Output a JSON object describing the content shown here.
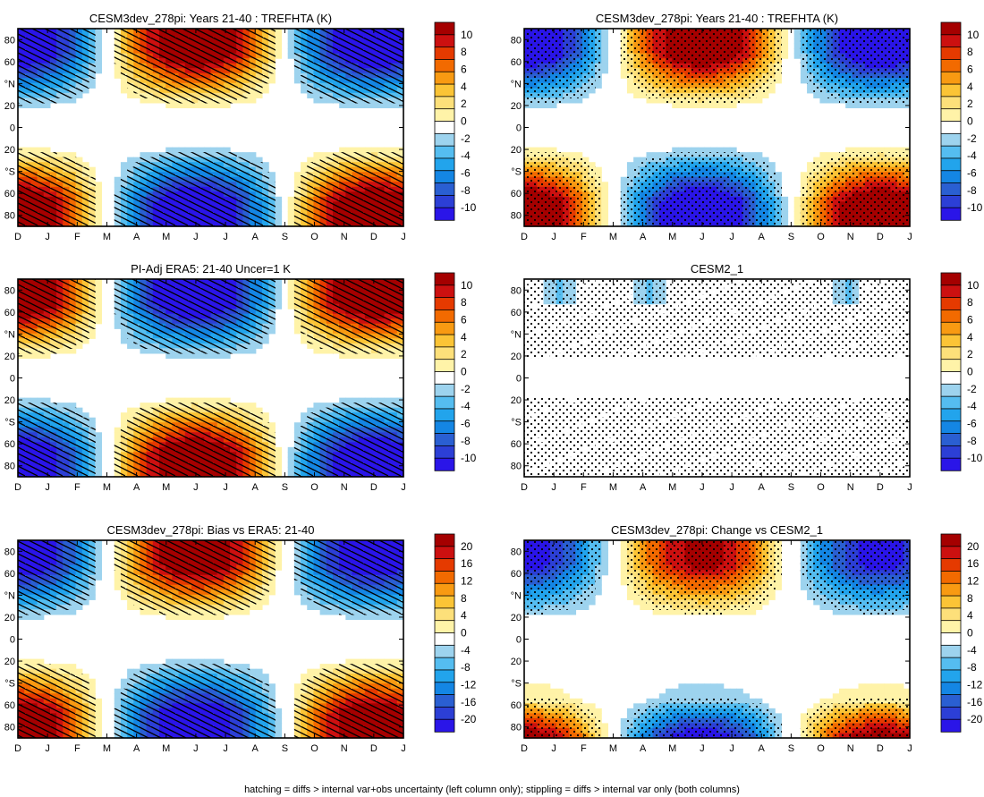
{
  "footnote": "hatching = diffs > internal var+obs uncertainty (left column only); stippling = diffs > internal var only (both columns)",
  "months": [
    "D",
    "J",
    "F",
    "M",
    "A",
    "M",
    "J",
    "J",
    "A",
    "S",
    "O",
    "N",
    "D",
    "J"
  ],
  "lat_labels": [
    "80",
    "60",
    "°N",
    "20",
    "0",
    "20",
    "°S",
    "60",
    "80"
  ],
  "colorbars": {
    "tref": [
      "10",
      "8",
      "6",
      "4",
      "2",
      "0",
      "-2",
      "-4",
      "-6",
      "-8",
      "-10"
    ],
    "bias": [
      "20",
      "16",
      "12",
      "8",
      "4",
      "0",
      "-4",
      "-8",
      "-12",
      "-16",
      "-20"
    ]
  },
  "palette": [
    "#a50000",
    "#cc1010",
    "#e53a00",
    "#f26a00",
    "#f89a12",
    "#fbc436",
    "#fde07a",
    "#fff3a8",
    "#ffffff",
    "#9dd3ee",
    "#55bdf0",
    "#22a4ec",
    "#1486e4",
    "#2a5fd2",
    "#2c3fd6",
    "#2a15e8"
  ],
  "chart_data": [
    {
      "type": "heatmap",
      "title": "CESM3dev_278pi: Years 21-40 : TREFHTA (K)",
      "x_categories": [
        "D",
        "J",
        "F",
        "M",
        "A",
        "M",
        "J",
        "J",
        "A",
        "S",
        "O",
        "N",
        "D",
        "J"
      ],
      "y_range": [
        -90,
        90
      ],
      "y_tick_labels": [
        "80",
        "60",
        "°N",
        "20",
        "0",
        "20",
        "°S",
        "60",
        "80"
      ],
      "colorbar_ticks": [
        10,
        8,
        6,
        4,
        2,
        0,
        -2,
        -4,
        -6,
        -8,
        -10
      ],
      "pattern": "NH cold DJF (~-10 K), warm JJA (~+10 K); SH warm DJF, cold JJA; near-zero in tropics",
      "overlay": "hatching"
    },
    {
      "type": "heatmap",
      "title": "CESM3dev_278pi: Years 21-40 : TREFHTA (K)",
      "x_categories": [
        "D",
        "J",
        "F",
        "M",
        "A",
        "M",
        "J",
        "J",
        "A",
        "S",
        "O",
        "N",
        "D",
        "J"
      ],
      "y_range": [
        -90,
        90
      ],
      "y_tick_labels": [
        "80",
        "60",
        "°N",
        "20",
        "0",
        "20",
        "°S",
        "60",
        "80"
      ],
      "colorbar_ticks": [
        10,
        8,
        6,
        4,
        2,
        0,
        -2,
        -4,
        -6,
        -8,
        -10
      ],
      "pattern": "Same field as left panel",
      "overlay": "stippling"
    },
    {
      "type": "heatmap",
      "title": "PI-Adj ERA5: 21-40 Uncer=1 K",
      "x_categories": [
        "D",
        "J",
        "F",
        "M",
        "A",
        "M",
        "J",
        "J",
        "A",
        "S",
        "O",
        "N",
        "D",
        "J"
      ],
      "y_range": [
        -90,
        90
      ],
      "y_tick_labels": [
        "80",
        "60",
        "°N",
        "20",
        "0",
        "20",
        "°S",
        "60",
        "80"
      ],
      "colorbar_ticks": [
        10,
        8,
        6,
        4,
        2,
        0,
        -2,
        -4,
        -6,
        -8,
        -10
      ],
      "pattern": "NH warm DJF, cold JJA; SH cold DJF, warm JJA (~+10 K)",
      "overlay": "hatching"
    },
    {
      "type": "heatmap",
      "title": "CESM2_1",
      "x_categories": [
        "D",
        "J",
        "F",
        "M",
        "A",
        "M",
        "J",
        "J",
        "A",
        "S",
        "O",
        "N",
        "D",
        "J"
      ],
      "y_range": [
        -90,
        90
      ],
      "y_tick_labels": [
        "80",
        "60",
        "°N",
        "20",
        "0",
        "20",
        "°S",
        "60",
        "80"
      ],
      "colorbar_ticks": [
        10,
        8,
        6,
        4,
        2,
        0,
        -2,
        -4,
        -6,
        -8,
        -10
      ],
      "pattern": "Mostly near zero; small -2 K patches at 80-90°N in Jan, Apr, Nov",
      "overlay": "stippling"
    },
    {
      "type": "heatmap",
      "title": "CESM3dev_278pi: Bias vs ERA5: 21-40",
      "x_categories": [
        "D",
        "J",
        "F",
        "M",
        "A",
        "M",
        "J",
        "J",
        "A",
        "S",
        "O",
        "N",
        "D",
        "J"
      ],
      "y_range": [
        -90,
        90
      ],
      "y_tick_labels": [
        "80",
        "60",
        "°N",
        "20",
        "0",
        "20",
        "°S",
        "60",
        "80"
      ],
      "colorbar_ticks": [
        20,
        16,
        12,
        8,
        4,
        0,
        -4,
        -8,
        -12,
        -16,
        -20
      ],
      "pattern": "NH cold DJF (~-20 K), warm JJA (~+12 K); SH warm DJF (~+20 K), cold JJA (~-20 K)",
      "overlay": "hatching"
    },
    {
      "type": "heatmap",
      "title": "CESM3dev_278pi: Change vs CESM2_1",
      "x_categories": [
        "D",
        "J",
        "F",
        "M",
        "A",
        "M",
        "J",
        "J",
        "A",
        "S",
        "O",
        "N",
        "D",
        "J"
      ],
      "y_range": [
        -90,
        90
      ],
      "y_tick_labels": [
        "80",
        "60",
        "°N",
        "20",
        "0",
        "20",
        "°S",
        "60",
        "80"
      ],
      "colorbar_ticks": [
        20,
        16,
        12,
        8,
        4,
        0,
        -4,
        -8,
        -12,
        -16,
        -20
      ],
      "pattern": "NH cold DJF (~-12 K), warm JJA (~+12 K); SH weak; SH high latitudes warm DJF, cold JJA",
      "overlay": "stippling"
    }
  ]
}
